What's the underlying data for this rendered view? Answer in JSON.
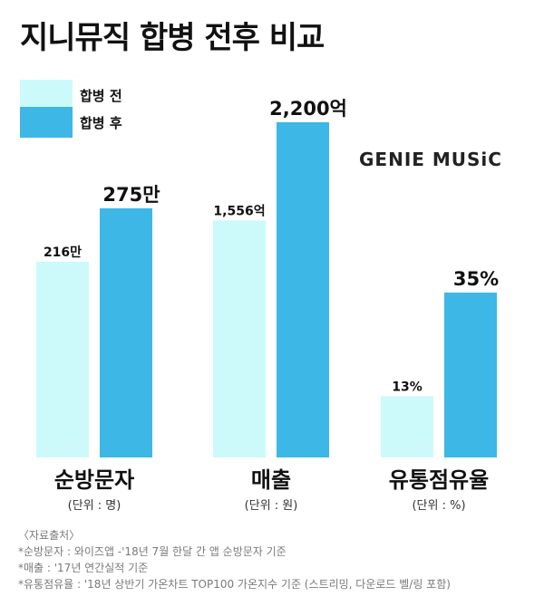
{
  "title": "지니뮤직 합병 전후 비교",
  "brand": "GENIE MUSiC",
  "colors": {
    "before": "#ccfafa",
    "after": "#3cb7e6"
  },
  "chart_data": {
    "type": "bar",
    "series": [
      {
        "name": "합병 전",
        "color": "#ccfafa"
      },
      {
        "name": "합병 후",
        "color": "#3cb7e6"
      }
    ],
    "groups": [
      {
        "category": "순방문자",
        "unit": "(단위 :  명)",
        "values": [
          216,
          275
        ],
        "labels": [
          "216만",
          "275만"
        ]
      },
      {
        "category": "매출",
        "unit": "(단위 : 원)",
        "values": [
          1556,
          2200
        ],
        "labels": [
          "1,556억",
          "2,200억"
        ]
      },
      {
        "category": "유통점유율",
        "unit": "(단위 : %)",
        "values": [
          13,
          35
        ],
        "labels": [
          "13%",
          "35%"
        ]
      }
    ]
  },
  "notes": [
    "〈자료출처〉",
    "*순방문자 : 와이즈앱 -'18년  7월  한달 간 앱 순방문자 기준",
    "*매출 : '17년  연간실적 기준",
    "*유통점유율 : '18년  상반기 가온차트 TOP100 가온지수 기준 (스트리밍, 다운로드 벨/링 포함)"
  ]
}
